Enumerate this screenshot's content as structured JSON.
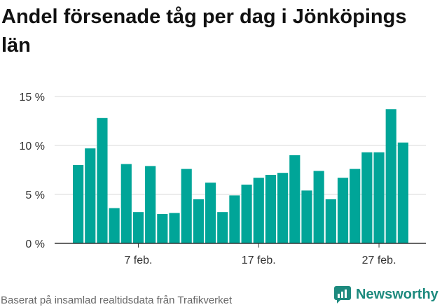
{
  "chart_data": {
    "type": "bar",
    "title": "Andel försenade tåg per dag i Jönköpings län",
    "xlabel": "",
    "ylabel": "",
    "ylim": [
      0,
      15
    ],
    "grid": true,
    "bar_color": "#00a598",
    "y_ticks": [
      {
        "value": 0,
        "label": "0 %"
      },
      {
        "value": 5,
        "label": "5 %"
      },
      {
        "value": 10,
        "label": "10 %"
      },
      {
        "value": 15,
        "label": "15 %"
      }
    ],
    "x_ticks": [
      {
        "index": 5,
        "label": "7 feb."
      },
      {
        "index": 15,
        "label": "17 feb."
      },
      {
        "index": 25,
        "label": "27 feb."
      }
    ],
    "categories": [
      "2 feb.",
      "3 feb.",
      "4 feb.",
      "5 feb.",
      "6 feb.",
      "7 feb.",
      "8 feb.",
      "9 feb.",
      "10 feb.",
      "11 feb.",
      "12 feb.",
      "13 feb.",
      "14 feb.",
      "15 feb.",
      "16 feb.",
      "17 feb.",
      "18 feb.",
      "19 feb.",
      "20 feb.",
      "21 feb.",
      "22 feb.",
      "23 feb.",
      "24 feb.",
      "25 feb.",
      "26 feb.",
      "27 feb.",
      "28 feb.",
      "29 feb."
    ],
    "values": [
      8.0,
      9.7,
      12.8,
      3.6,
      8.1,
      3.2,
      7.9,
      3.0,
      3.1,
      7.6,
      4.5,
      6.2,
      3.2,
      4.9,
      6.0,
      6.7,
      7.0,
      7.2,
      9.0,
      5.4,
      7.4,
      4.5,
      6.7,
      7.6,
      9.3,
      9.3,
      13.7,
      10.3
    ]
  },
  "footer": {
    "source": "Baserat på insamlad realtidsdata från Trafikverket",
    "brand": "Newsworthy",
    "brand_color": "#1d8a7e",
    "brand_icon": "newsworthy-logo-icon"
  }
}
